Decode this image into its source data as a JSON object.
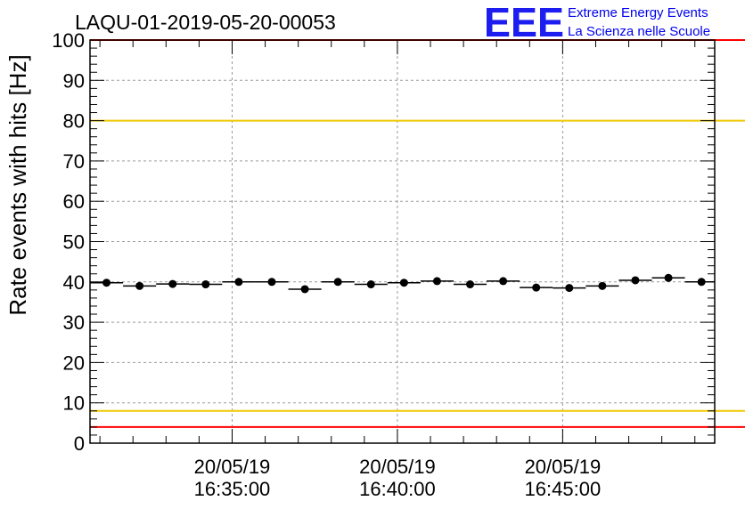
{
  "logo": {
    "mark": "EEE",
    "line1": "Extreme Energy Events",
    "line2": "La Scienza nelle Scuole",
    "color": "#1d1df0"
  },
  "chart_data": {
    "type": "scatter",
    "title": "LAQU-01-2019-05-20-00053",
    "xlabel": "",
    "ylabel": "Rate events with hits [Hz]",
    "ylim": [
      0,
      100
    ],
    "yticks": [
      0,
      10,
      20,
      30,
      40,
      50,
      60,
      70,
      80,
      90,
      100
    ],
    "xlim_minutes": [
      30.7,
      49.6
    ],
    "xticks": [
      {
        "minute": 35,
        "date": "20/05/19",
        "time": "16:35:00"
      },
      {
        "minute": 40,
        "date": "20/05/19",
        "time": "16:40:00"
      },
      {
        "minute": 45,
        "date": "20/05/19",
        "time": "16:45:00"
      }
    ],
    "grid": true,
    "bin_width_minutes": 1,
    "series": [
      {
        "name": "rate",
        "color": "#000000",
        "x_minutes": [
          31.2,
          32.2,
          33.2,
          34.2,
          35.2,
          36.2,
          37.2,
          38.2,
          39.2,
          40.2,
          41.2,
          42.2,
          43.2,
          44.2,
          45.2,
          46.2,
          47.2,
          48.2,
          49.2
        ],
        "values": [
          39.8,
          39.0,
          39.5,
          39.4,
          40.0,
          40.0,
          38.2,
          40.0,
          39.4,
          39.8,
          40.2,
          39.4,
          40.2,
          38.6,
          38.5,
          39.0,
          40.4,
          41.0,
          40.0
        ]
      }
    ],
    "reference_lines": [
      {
        "name": "upper-limit-red",
        "value": 100,
        "color": "#ff0000"
      },
      {
        "name": "upper-threshold-yellow",
        "value": 80,
        "color": "#f0c800"
      },
      {
        "name": "lower-threshold-yellow",
        "value": 8,
        "color": "#f0c800"
      },
      {
        "name": "lower-limit-red",
        "value": 4,
        "color": "#ff0000"
      }
    ]
  }
}
